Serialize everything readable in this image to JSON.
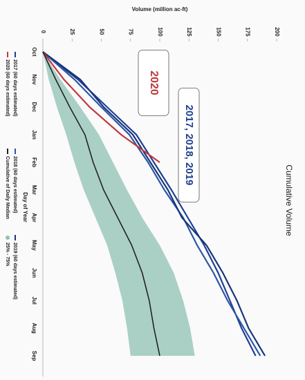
{
  "chart_data": {
    "type": "line",
    "title": "Cumulative Volume",
    "x_label": "Day of Year",
    "y_label": "Volume (million ac-ft)",
    "categories": [
      "Oct",
      "Nov",
      "Dec",
      "Jan",
      "Feb",
      "Mar",
      "Apr",
      "May",
      "Jun",
      "Jul",
      "Aug",
      "Sep"
    ],
    "ylim": [
      0,
      200
    ],
    "yticks": [
      0,
      25,
      50,
      75,
      100,
      125,
      150,
      175,
      200
    ],
    "series": [
      {
        "name": "2017 (60 days estimated)",
        "color": "#1f3f8f",
        "values": [
          0,
          30,
          55,
          80,
          95,
          110,
          124,
          138,
          150,
          160,
          170,
          182
        ]
      },
      {
        "name": "2018 (60 days estimated)",
        "color": "#2a55a8",
        "values": [
          0,
          27,
          50,
          74,
          90,
          104,
          120,
          132,
          146,
          158,
          172,
          186
        ]
      },
      {
        "name": "2019 (60 days estimated)",
        "color": "#17357a",
        "values": [
          0,
          32,
          52,
          77,
          92,
          107,
          119,
          140,
          154,
          166,
          176,
          190
        ]
      },
      {
        "name": "2020 (60 days estimated)",
        "color": "#c0393f",
        "values": [
          0,
          18,
          40,
          67,
          100,
          null,
          null,
          null,
          null,
          null,
          null,
          null
        ]
      },
      {
        "name": "Cumulative of Daily Median",
        "color": "#222222",
        "values": [
          0,
          11,
          23,
          36,
          43,
          52,
          64,
          76,
          85,
          91,
          95,
          100
        ]
      }
    ],
    "band": {
      "name": "25% - 75%",
      "color": "#8fc1b4",
      "low": [
        0,
        5,
        12,
        20,
        27,
        35,
        45,
        55,
        62,
        68,
        72,
        75
      ],
      "high": [
        0,
        15,
        32,
        48,
        60,
        72,
        85,
        100,
        112,
        120,
        126,
        130
      ]
    },
    "annotations": [
      {
        "text": "2020",
        "color": "#c0393f"
      },
      {
        "text": "2017, 2018, 2019",
        "color": "#1f3f8f"
      }
    ]
  }
}
